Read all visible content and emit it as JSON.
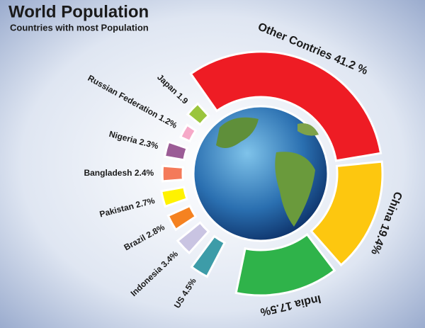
{
  "chart_data": {
    "type": "radial",
    "title": "World Population",
    "subtitle": "Countries with most Population",
    "categories": [
      "Other Contries",
      "China",
      "India",
      "US",
      "Indonesia",
      "Brazil",
      "Pakistan",
      "Bangladesh",
      "Nigeria",
      "Russian Federation",
      "Japan"
    ],
    "values": [
      41.2,
      19.4,
      17.5,
      4.5,
      3.4,
      2.8,
      2.7,
      2.4,
      2.3,
      1.2,
      1.9
    ],
    "value_labels": [
      "41.2 %",
      "19.4%",
      "17.5%",
      "4.5%",
      "3.4%",
      "2.8%",
      "2.7%",
      "2.4%",
      "2.3%",
      "1.2%",
      "1.9"
    ],
    "colors": [
      "#ee1c24",
      "#fdc70f",
      "#2fb34a",
      "#3d9ca8",
      "#c9c4e2",
      "#f58220",
      "#fff200",
      "#f47a5a",
      "#9b5c96",
      "#f6a9c8",
      "#9bc53d"
    ]
  }
}
